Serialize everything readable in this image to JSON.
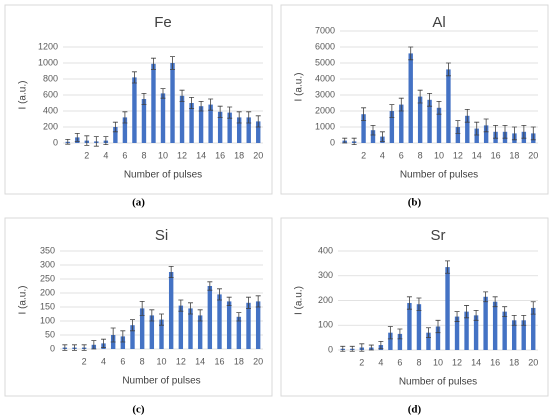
{
  "chart_data": [
    {
      "type": "bar",
      "title": "Fe",
      "label": "(a)",
      "y_label": "I (a.u.)",
      "x_label": "Number of pulses",
      "color": "#4472c4",
      "grid": true,
      "categories": [
        null,
        null,
        2,
        null,
        4,
        null,
        6,
        null,
        8,
        null,
        10,
        null,
        12,
        null,
        14,
        null,
        16,
        null,
        18,
        null,
        20
      ],
      "values": [
        15,
        70,
        30,
        20,
        30,
        200,
        320,
        820,
        550,
        990,
        620,
        1000,
        590,
        500,
        460,
        480,
        390,
        380,
        320,
        320,
        270
      ],
      "errors": [
        30,
        50,
        60,
        60,
        50,
        60,
        70,
        70,
        70,
        70,
        60,
        80,
        70,
        70,
        60,
        70,
        70,
        70,
        70,
        70,
        70
      ],
      "ylim": [
        0,
        1200
      ],
      "yticks": [
        0,
        200,
        400,
        600,
        800,
        1000,
        1200
      ]
    },
    {
      "type": "bar",
      "title": "Al",
      "label": "(b)",
      "y_label": "I (a.u.)",
      "x_label": "Number of pulses",
      "color": "#4472c4",
      "grid": true,
      "categories": [
        null,
        null,
        2,
        null,
        4,
        null,
        6,
        null,
        8,
        null,
        10,
        null,
        12,
        null,
        14,
        null,
        16,
        null,
        18,
        null,
        20
      ],
      "values": [
        150,
        100,
        1800,
        800,
        400,
        2000,
        2400,
        5600,
        2900,
        2700,
        2200,
        4600,
        1000,
        1700,
        900,
        1100,
        700,
        700,
        600,
        700,
        600
      ],
      "errors": [
        150,
        200,
        400,
        300,
        300,
        400,
        400,
        400,
        400,
        400,
        400,
        400,
        400,
        400,
        400,
        400,
        400,
        400,
        400,
        400,
        400
      ],
      "ylim": [
        0,
        7000
      ],
      "yticks": [
        0,
        1000,
        2000,
        3000,
        4000,
        5000,
        6000,
        7000
      ]
    },
    {
      "type": "bar",
      "title": "Si",
      "label": "(c)",
      "y_label": "I (a.u.)",
      "x_label": "Number of pulses",
      "color": "#4472c4",
      "grid": true,
      "categories": [
        null,
        null,
        2,
        null,
        4,
        null,
        6,
        null,
        8,
        null,
        10,
        null,
        12,
        null,
        14,
        null,
        16,
        null,
        18,
        null,
        20
      ],
      "values": [
        5,
        5,
        5,
        15,
        20,
        50,
        45,
        85,
        145,
        120,
        105,
        275,
        155,
        145,
        120,
        225,
        195,
        170,
        115,
        165,
        170
      ],
      "errors": [
        10,
        10,
        10,
        15,
        15,
        25,
        20,
        20,
        25,
        20,
        20,
        20,
        20,
        20,
        20,
        15,
        20,
        15,
        15,
        20,
        20
      ],
      "ylim": [
        0,
        350
      ],
      "yticks": [
        0,
        50,
        100,
        150,
        200,
        250,
        300,
        350
      ]
    },
    {
      "type": "bar",
      "title": "Sr",
      "label": "(d)",
      "y_label": "I (a.u.)",
      "x_label": "Number of pulses",
      "color": "#4472c4",
      "grid": true,
      "categories": [
        null,
        null,
        2,
        null,
        4,
        null,
        6,
        null,
        8,
        null,
        10,
        null,
        12,
        null,
        14,
        null,
        16,
        null,
        18,
        null,
        20
      ],
      "values": [
        5,
        5,
        10,
        10,
        20,
        70,
        65,
        190,
        185,
        70,
        95,
        335,
        135,
        155,
        140,
        215,
        195,
        155,
        120,
        120,
        170
      ],
      "errors": [
        10,
        10,
        15,
        10,
        15,
        25,
        20,
        25,
        25,
        20,
        25,
        25,
        20,
        25,
        20,
        20,
        20,
        20,
        20,
        20,
        25
      ],
      "ylim": [
        0,
        400
      ],
      "yticks": [
        0,
        100,
        200,
        300,
        400
      ]
    }
  ]
}
